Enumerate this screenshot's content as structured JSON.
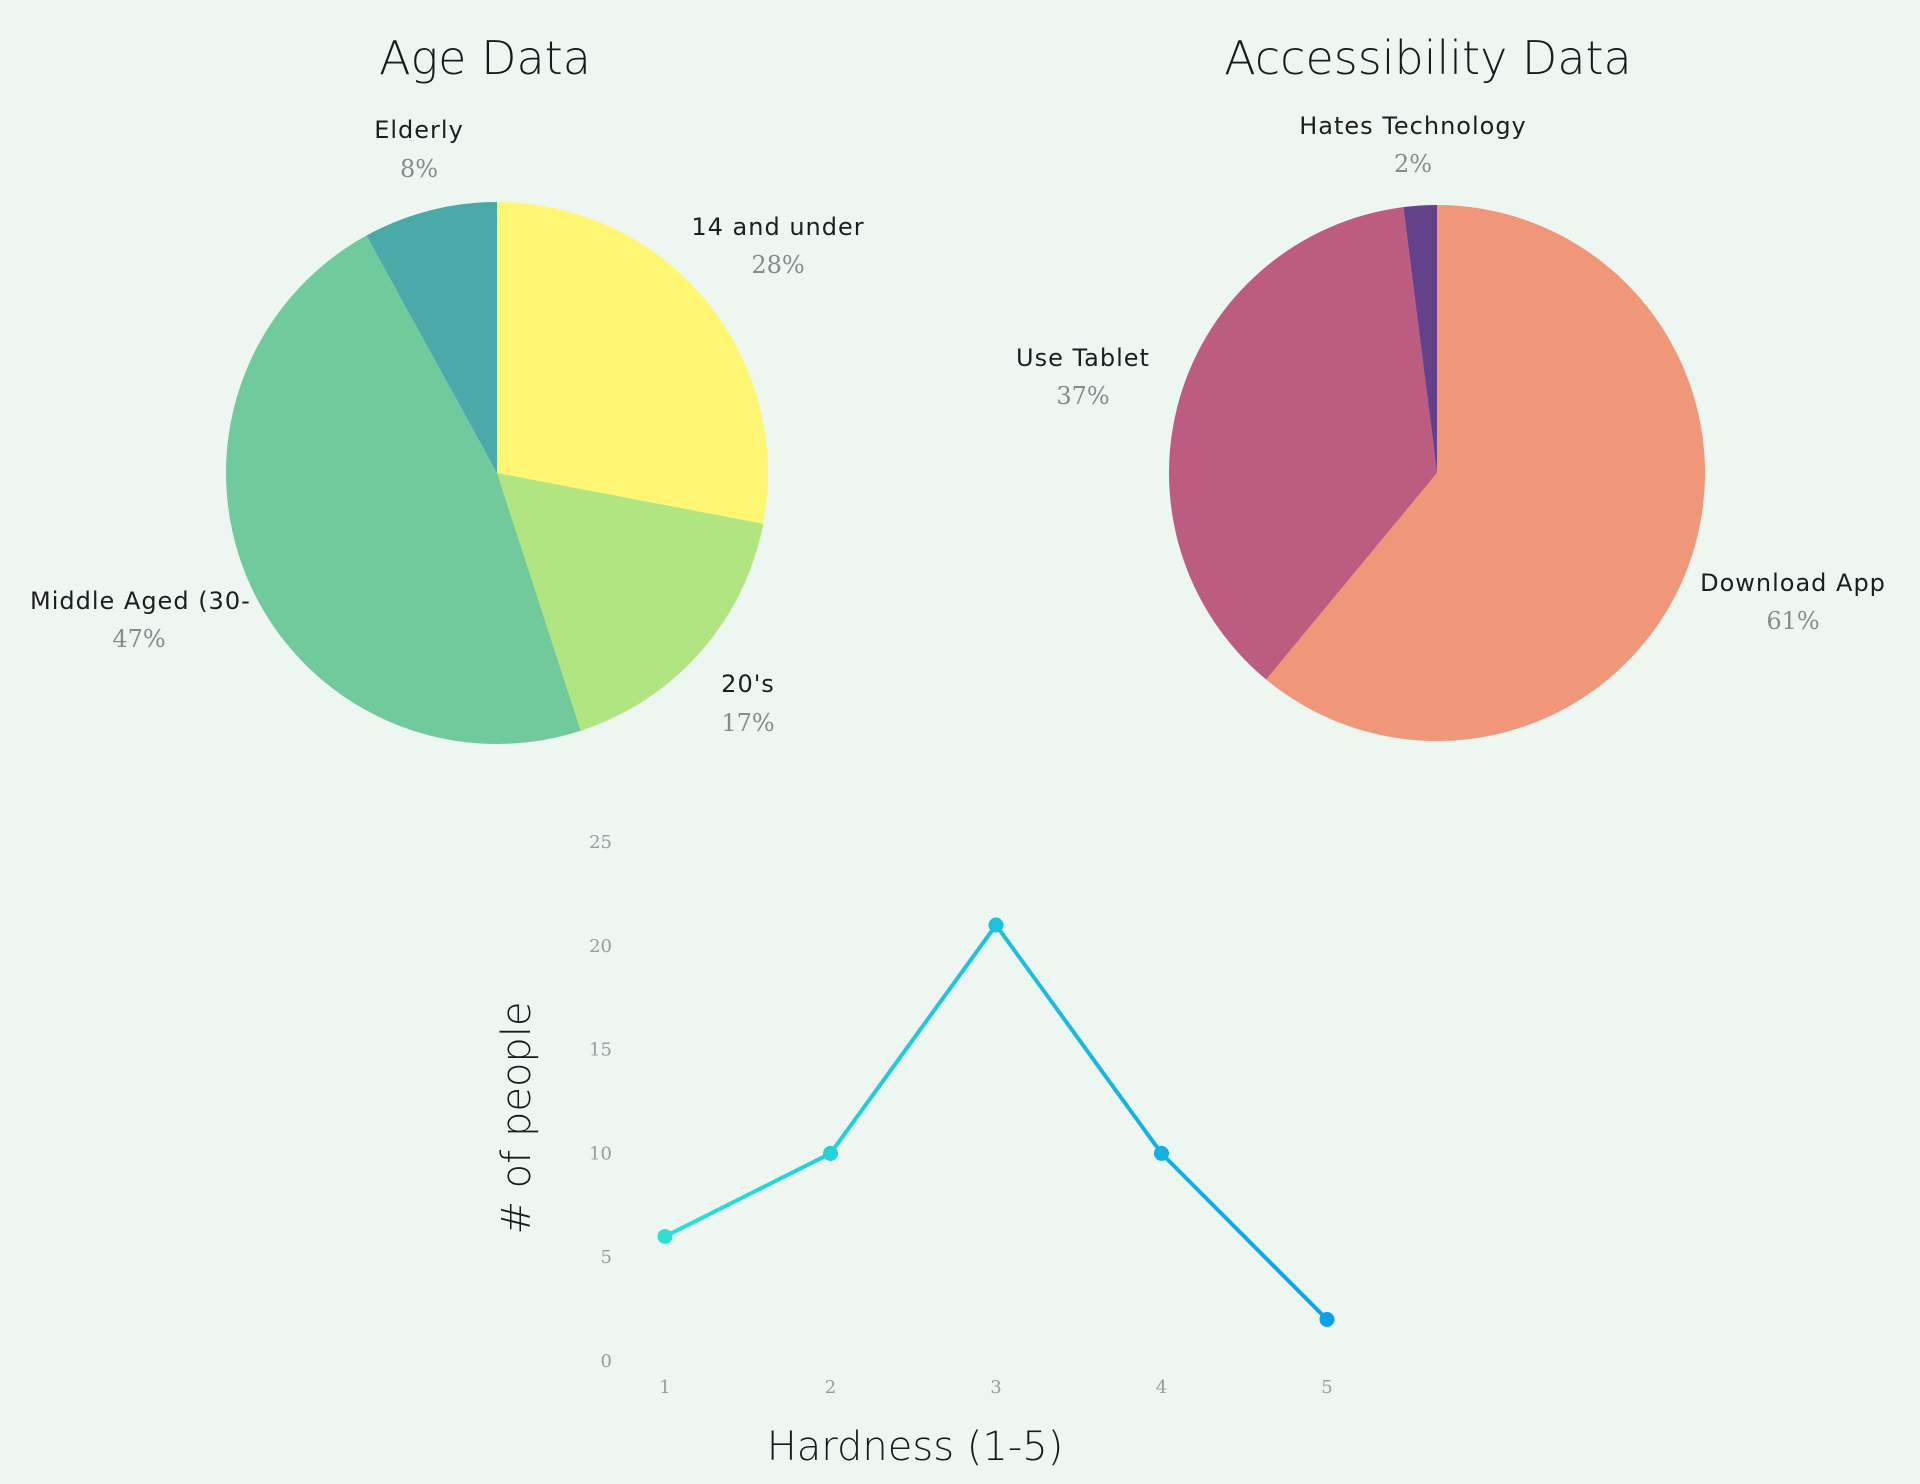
{
  "chart_data": [
    {
      "type": "pie",
      "title": "Age Data",
      "slices": [
        {
          "label": "14 and under",
          "pct_label": "28%",
          "value": 28,
          "color": "#fff673"
        },
        {
          "label": "20's",
          "pct_label": "17%",
          "value": 17,
          "color": "#b0e582"
        },
        {
          "label": "Middle Aged (30-",
          "pct_label": "47%",
          "value": 47,
          "color": "#70ca9b"
        },
        {
          "label": "Elderly",
          "pct_label": "8%",
          "value": 8,
          "color": "#4ca9aa"
        }
      ]
    },
    {
      "type": "pie",
      "title": "Accessibility Data",
      "slices": [
        {
          "label": "Download App",
          "pct_label": "61%",
          "value": 61,
          "color": "#f0977a"
        },
        {
          "label": "Use Tablet",
          "pct_label": "37%",
          "value": 37,
          "color": "#bd5c81"
        },
        {
          "label": "Hates Technology",
          "pct_label": "2%",
          "value": 2,
          "color": "#63428b"
        }
      ]
    },
    {
      "type": "line",
      "xlabel": "Hardness (1-5)",
      "ylabel": "# of people",
      "x": [
        1,
        2,
        3,
        4,
        5
      ],
      "x_tick_labels": [
        "1",
        "2",
        "3",
        "4",
        "5"
      ],
      "y": [
        6,
        10,
        21,
        10,
        2
      ],
      "ylim": [
        0,
        25
      ],
      "y_ticks": [
        0,
        5,
        10,
        15,
        20,
        25
      ],
      "y_tick_labels": [
        "0",
        "5",
        "10",
        "15",
        "20",
        "25"
      ],
      "grid": false,
      "colors": {
        "start": "#2fe0d2",
        "end": "#0aa2e8"
      }
    }
  ]
}
